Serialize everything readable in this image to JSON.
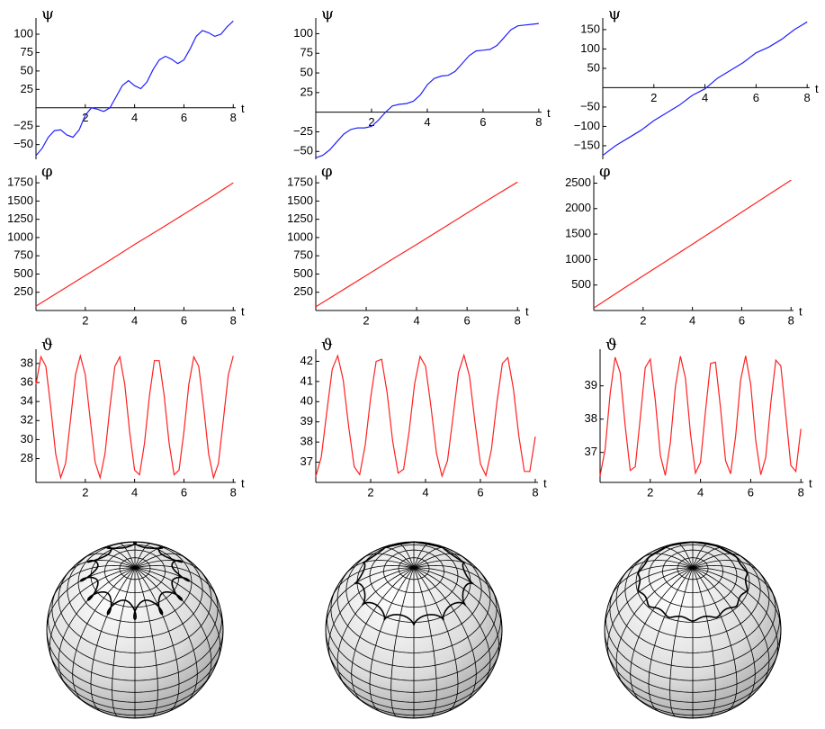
{
  "chart_data": [
    {
      "type": "line",
      "y_label": "ψ",
      "x_label": "t",
      "color": "#2020ff",
      "x": [
        0,
        0.25,
        0.5,
        0.75,
        1,
        1.25,
        1.5,
        1.75,
        2,
        2.25,
        2.5,
        2.75,
        3,
        3.25,
        3.5,
        3.75,
        4,
        4.25,
        4.5,
        4.75,
        5,
        5.25,
        5.5,
        5.75,
        6,
        6.25,
        6.5,
        6.75,
        7,
        7.25,
        7.5,
        7.75,
        8
      ],
      "values": [
        -65,
        -55,
        -40,
        -31,
        -30,
        -37,
        -40,
        -30,
        -10,
        0,
        -2,
        -5,
        0,
        15,
        30,
        37,
        30,
        26,
        35,
        52,
        65,
        70,
        66,
        60,
        65,
        80,
        97,
        105,
        102,
        97,
        100,
        110,
        118
      ],
      "xlim": [
        0,
        8.1
      ],
      "ylim": [
        -70,
        122
      ],
      "xticks": [
        2,
        4,
        6,
        8
      ],
      "yticks": [
        {
          "value": -50,
          "label": "−50"
        },
        {
          "value": -25,
          "label": "−25"
        },
        25,
        50,
        75,
        100
      ]
    },
    {
      "type": "line",
      "y_label": "ψ",
      "x_label": "t",
      "color": "#2020ff",
      "x": [
        0,
        0.25,
        0.5,
        0.75,
        1,
        1.25,
        1.5,
        1.75,
        2,
        2.25,
        2.5,
        2.75,
        3,
        3.25,
        3.5,
        3.75,
        4,
        4.25,
        4.5,
        4.75,
        5,
        5.25,
        5.5,
        5.75,
        6,
        6.25,
        6.5,
        6.75,
        7,
        7.25,
        7.5,
        7.75,
        8
      ],
      "values": [
        -58,
        -55,
        -48,
        -38,
        -28,
        -22,
        -20,
        -20,
        -18,
        -10,
        0,
        8,
        10,
        11,
        14,
        22,
        35,
        43,
        46,
        47,
        52,
        62,
        72,
        78,
        79,
        80,
        85,
        95,
        105,
        110,
        111,
        112,
        113
      ],
      "xlim": [
        0,
        8.1
      ],
      "ylim": [
        -60,
        120
      ],
      "xticks": [
        2,
        4,
        6,
        8
      ],
      "yticks": [
        {
          "value": -50,
          "label": "−50"
        },
        {
          "value": -25,
          "label": "−25"
        },
        25,
        50,
        75,
        100
      ]
    },
    {
      "type": "line",
      "y_label": "ψ",
      "x_label": "t",
      "color": "#2020ff",
      "x": [
        0,
        0.5,
        1,
        1.5,
        2,
        2.5,
        3,
        3.5,
        4,
        4.5,
        5,
        5.5,
        6,
        6.5,
        7,
        7.5,
        8
      ],
      "values": [
        -175,
        -150,
        -130,
        -110,
        -85,
        -65,
        -45,
        -20,
        -3,
        25,
        45,
        65,
        90,
        105,
        125,
        150,
        170
      ],
      "xlim": [
        0,
        8.1
      ],
      "ylim": [
        -185,
        180
      ],
      "xticks": [
        2,
        4,
        6,
        8
      ],
      "yticks": [
        {
          "value": -150,
          "label": "−150"
        },
        {
          "value": -100,
          "label": "−100"
        },
        {
          "value": -50,
          "label": "−50"
        },
        50,
        100,
        150
      ]
    },
    {
      "type": "line",
      "y_label": "φ",
      "x_label": "t",
      "color": "#ff2020",
      "x": [
        0,
        1,
        2,
        3,
        4,
        5,
        6,
        7,
        8
      ],
      "values": [
        60,
        270,
        480,
        690,
        905,
        1110,
        1320,
        1530,
        1750
      ],
      "xlim": [
        0,
        8.1
      ],
      "ylim": [
        0,
        1850
      ],
      "xticks": [
        2,
        4,
        6,
        8
      ],
      "yticks": [
        250,
        500,
        750,
        1000,
        1250,
        1500,
        1750
      ]
    },
    {
      "type": "line",
      "y_label": "φ",
      "x_label": "t",
      "color": "#ff2020",
      "x": [
        0,
        1,
        2,
        3,
        4,
        5,
        6,
        7,
        8
      ],
      "values": [
        50,
        265,
        480,
        695,
        905,
        1120,
        1335,
        1550,
        1760
      ],
      "xlim": [
        0,
        8.1
      ],
      "ylim": [
        0,
        1850
      ],
      "xticks": [
        2,
        4,
        6,
        8
      ],
      "yticks": [
        250,
        500,
        750,
        1000,
        1250,
        1500,
        1750
      ]
    },
    {
      "type": "line",
      "y_label": "φ",
      "x_label": "t",
      "color": "#ff2020",
      "x": [
        0,
        1,
        2,
        3,
        4,
        5,
        6,
        7,
        8
      ],
      "values": [
        50,
        365,
        680,
        990,
        1300,
        1615,
        1930,
        2245,
        2560
      ],
      "xlim": [
        0,
        8.1
      ],
      "ylim": [
        0,
        2650
      ],
      "xticks": [
        2,
        4,
        6,
        8
      ],
      "yticks": [
        500,
        1000,
        1500,
        2000,
        2500
      ]
    },
    {
      "type": "line",
      "y_label": "ϑ",
      "x_label": "t",
      "color": "#ff2020",
      "x": [
        0,
        0.2,
        0.4,
        0.6,
        0.8,
        1,
        1.2,
        1.4,
        1.6,
        1.8,
        2,
        2.2,
        2.4,
        2.6,
        2.8,
        3,
        3.2,
        3.4,
        3.6,
        3.8,
        4,
        4.2,
        4.4,
        4.6,
        4.8,
        5,
        5.2,
        5.4,
        5.6,
        5.8,
        6,
        6.2,
        6.4,
        6.6,
        6.8,
        7,
        7.2,
        7.4,
        7.6,
        7.8,
        8
      ],
      "values": [
        35.8,
        38.7,
        37.7,
        33.4,
        28.5,
        26.0,
        27.5,
        32.1,
        36.8,
        38.8,
        36.8,
        32.1,
        27.6,
        26.0,
        28.5,
        33.4,
        37.7,
        38.7,
        35.8,
        30.8,
        26.8,
        26.3,
        29.6,
        34.6,
        38.3,
        38.3,
        34.6,
        29.6,
        26.3,
        26.8,
        30.8,
        35.8,
        38.7,
        37.7,
        33.4,
        28.5,
        26.0,
        27.5,
        32.1,
        36.8,
        38.8
      ],
      "xlim": [
        0,
        8.1
      ],
      "ylim": [
        25.5,
        39.5
      ],
      "xticks": [
        2,
        4,
        6,
        8
      ],
      "yticks": [
        28,
        30,
        32,
        34,
        36,
        38
      ]
    },
    {
      "type": "line",
      "y_label": "ϑ",
      "x_label": "t",
      "color": "#ff2020",
      "x": [
        0,
        0.2,
        0.4,
        0.6,
        0.8,
        1,
        1.2,
        1.4,
        1.6,
        1.8,
        2,
        2.2,
        2.4,
        2.6,
        2.8,
        3,
        3.2,
        3.4,
        3.6,
        3.8,
        4,
        4.2,
        4.4,
        4.6,
        4.8,
        5,
        5.2,
        5.4,
        5.6,
        5.8,
        6,
        6.2,
        6.4,
        6.6,
        6.8,
        7,
        7.2,
        7.4,
        7.6,
        7.8,
        8
      ],
      "values": [
        36.3,
        37.25,
        39.48,
        41.61,
        42.28,
        41.07,
        38.75,
        36.78,
        36.39,
        37.83,
        40.2,
        42.0,
        42.1,
        40.44,
        38.06,
        36.46,
        36.65,
        38.51,
        40.87,
        42.24,
        41.76,
        39.73,
        37.43,
        36.31,
        37.07,
        39.23,
        41.44,
        42.3,
        41.27,
        39.0,
        36.92,
        36.34,
        37.62,
        39.96,
        41.89,
        42.18,
        40.66,
        38.29,
        36.55,
        36.54,
        38.27
      ],
      "xlim": [
        0,
        8.1
      ],
      "ylim": [
        36,
        42.6
      ],
      "xticks": [
        2,
        4,
        6,
        8
      ],
      "yticks": [
        37,
        38,
        39,
        40,
        41,
        42
      ]
    },
    {
      "type": "line",
      "y_label": "ϑ",
      "x_label": "t",
      "color": "#ff2020",
      "x": [
        0,
        0.2,
        0.4,
        0.6,
        0.8,
        1,
        1.2,
        1.4,
        1.6,
        1.8,
        2,
        2.2,
        2.4,
        2.6,
        2.8,
        3,
        3.2,
        3.4,
        3.6,
        3.8,
        4,
        4.2,
        4.4,
        4.6,
        4.8,
        5,
        5.2,
        5.4,
        5.6,
        5.8,
        6,
        6.2,
        6.4,
        6.6,
        6.8,
        7,
        7.2,
        7.4,
        7.6,
        7.8,
        8
      ],
      "values": [
        36.3,
        37.09,
        38.77,
        39.86,
        39.4,
        37.8,
        36.46,
        36.57,
        38.02,
        39.55,
        39.8,
        38.56,
        36.91,
        36.31,
        37.29,
        38.97,
        39.89,
        39.23,
        37.58,
        36.38,
        36.7,
        38.25,
        39.67,
        39.71,
        38.33,
        36.75,
        36.36,
        37.5,
        39.17,
        39.9,
        39.05,
        37.36,
        36.33,
        36.85,
        38.47,
        39.77,
        39.6,
        38.11,
        36.61,
        36.43,
        37.71
      ],
      "xlim": [
        0,
        8.1
      ],
      "ylim": [
        36.1,
        40.1
      ],
      "xticks": [
        2,
        4,
        6,
        8
      ],
      "yticks": [
        37,
        38,
        39
      ]
    }
  ]
}
